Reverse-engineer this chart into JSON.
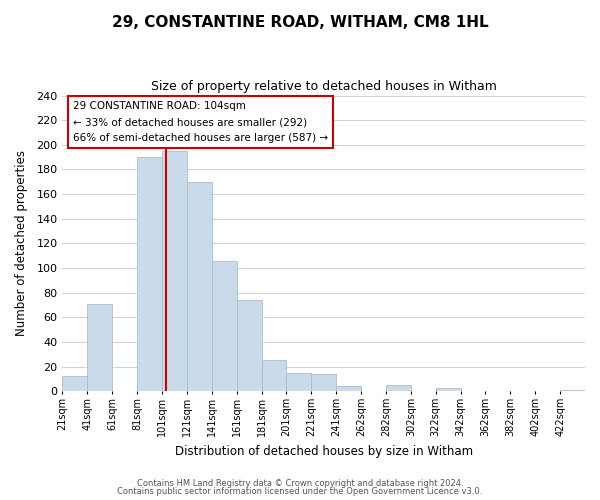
{
  "title": "29, CONSTANTINE ROAD, WITHAM, CM8 1HL",
  "subtitle": "Size of property relative to detached houses in Witham",
  "xlabel": "Distribution of detached houses by size in Witham",
  "ylabel": "Number of detached properties",
  "bar_color": "#c9daea",
  "bar_edge_color": "#aabdcc",
  "background_color": "#ffffff",
  "grid_color": "#d0d0d0",
  "bin_labels": [
    "21sqm",
    "41sqm",
    "61sqm",
    "81sqm",
    "101sqm",
    "121sqm",
    "141sqm",
    "161sqm",
    "181sqm",
    "201sqm",
    "221sqm",
    "241sqm",
    "262sqm",
    "282sqm",
    "302sqm",
    "322sqm",
    "342sqm",
    "362sqm",
    "382sqm",
    "402sqm",
    "422sqm"
  ],
  "bar_heights": [
    12,
    71,
    0,
    190,
    195,
    170,
    106,
    74,
    25,
    15,
    14,
    4,
    0,
    5,
    0,
    3,
    0,
    0,
    0,
    0,
    1
  ],
  "ylim": [
    0,
    240
  ],
  "yticks": [
    0,
    20,
    40,
    60,
    80,
    100,
    120,
    140,
    160,
    180,
    200,
    220,
    240
  ],
  "property_line_x": 104,
  "annotation_title": "29 CONSTANTINE ROAD: 104sqm",
  "annotation_line1": "← 33% of detached houses are smaller (292)",
  "annotation_line2": "66% of semi-detached houses are larger (587) →",
  "vline_color": "#cc0000",
  "annotation_box_edge": "#cc0000",
  "footer_line1": "Contains HM Land Registry data © Crown copyright and database right 2024.",
  "footer_line2": "Contains public sector information licensed under the Open Government Licence v3.0."
}
